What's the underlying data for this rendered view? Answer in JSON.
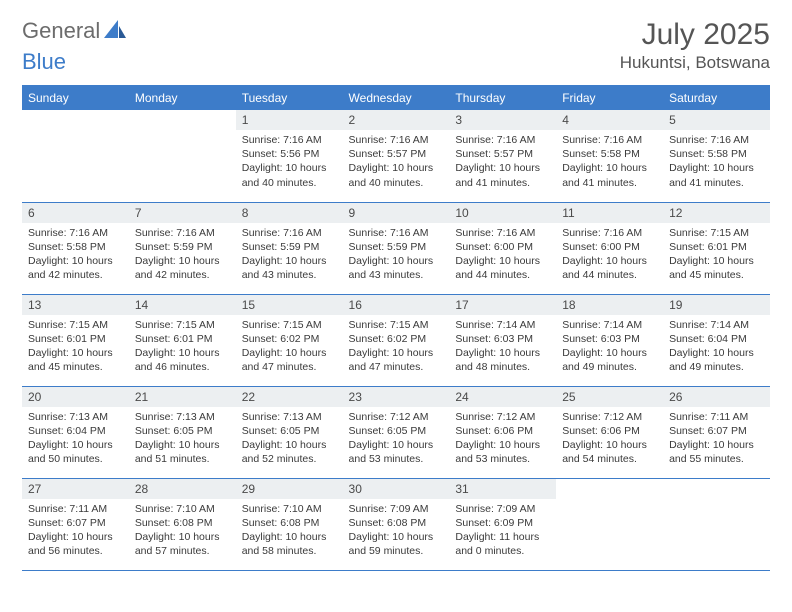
{
  "logo": {
    "part1": "General",
    "part2": "Blue"
  },
  "title": "July 2025",
  "location": "Hukuntsi, Botswana",
  "colors": {
    "accent": "#3d7cc9",
    "header_text": "#ffffff",
    "daynum_bg": "#eceff1",
    "text": "#333333",
    "title_text": "#555555"
  },
  "weekdays": [
    "Sunday",
    "Monday",
    "Tuesday",
    "Wednesday",
    "Thursday",
    "Friday",
    "Saturday"
  ],
  "weeks": [
    [
      {
        "empty": true
      },
      {
        "empty": true
      },
      {
        "day": "1",
        "sunrise": "Sunrise: 7:16 AM",
        "sunset": "Sunset: 5:56 PM",
        "daylight": "Daylight: 10 hours and 40 minutes."
      },
      {
        "day": "2",
        "sunrise": "Sunrise: 7:16 AM",
        "sunset": "Sunset: 5:57 PM",
        "daylight": "Daylight: 10 hours and 40 minutes."
      },
      {
        "day": "3",
        "sunrise": "Sunrise: 7:16 AM",
        "sunset": "Sunset: 5:57 PM",
        "daylight": "Daylight: 10 hours and 41 minutes."
      },
      {
        "day": "4",
        "sunrise": "Sunrise: 7:16 AM",
        "sunset": "Sunset: 5:58 PM",
        "daylight": "Daylight: 10 hours and 41 minutes."
      },
      {
        "day": "5",
        "sunrise": "Sunrise: 7:16 AM",
        "sunset": "Sunset: 5:58 PM",
        "daylight": "Daylight: 10 hours and 41 minutes."
      }
    ],
    [
      {
        "day": "6",
        "sunrise": "Sunrise: 7:16 AM",
        "sunset": "Sunset: 5:58 PM",
        "daylight": "Daylight: 10 hours and 42 minutes."
      },
      {
        "day": "7",
        "sunrise": "Sunrise: 7:16 AM",
        "sunset": "Sunset: 5:59 PM",
        "daylight": "Daylight: 10 hours and 42 minutes."
      },
      {
        "day": "8",
        "sunrise": "Sunrise: 7:16 AM",
        "sunset": "Sunset: 5:59 PM",
        "daylight": "Daylight: 10 hours and 43 minutes."
      },
      {
        "day": "9",
        "sunrise": "Sunrise: 7:16 AM",
        "sunset": "Sunset: 5:59 PM",
        "daylight": "Daylight: 10 hours and 43 minutes."
      },
      {
        "day": "10",
        "sunrise": "Sunrise: 7:16 AM",
        "sunset": "Sunset: 6:00 PM",
        "daylight": "Daylight: 10 hours and 44 minutes."
      },
      {
        "day": "11",
        "sunrise": "Sunrise: 7:16 AM",
        "sunset": "Sunset: 6:00 PM",
        "daylight": "Daylight: 10 hours and 44 minutes."
      },
      {
        "day": "12",
        "sunrise": "Sunrise: 7:15 AM",
        "sunset": "Sunset: 6:01 PM",
        "daylight": "Daylight: 10 hours and 45 minutes."
      }
    ],
    [
      {
        "day": "13",
        "sunrise": "Sunrise: 7:15 AM",
        "sunset": "Sunset: 6:01 PM",
        "daylight": "Daylight: 10 hours and 45 minutes."
      },
      {
        "day": "14",
        "sunrise": "Sunrise: 7:15 AM",
        "sunset": "Sunset: 6:01 PM",
        "daylight": "Daylight: 10 hours and 46 minutes."
      },
      {
        "day": "15",
        "sunrise": "Sunrise: 7:15 AM",
        "sunset": "Sunset: 6:02 PM",
        "daylight": "Daylight: 10 hours and 47 minutes."
      },
      {
        "day": "16",
        "sunrise": "Sunrise: 7:15 AM",
        "sunset": "Sunset: 6:02 PM",
        "daylight": "Daylight: 10 hours and 47 minutes."
      },
      {
        "day": "17",
        "sunrise": "Sunrise: 7:14 AM",
        "sunset": "Sunset: 6:03 PM",
        "daylight": "Daylight: 10 hours and 48 minutes."
      },
      {
        "day": "18",
        "sunrise": "Sunrise: 7:14 AM",
        "sunset": "Sunset: 6:03 PM",
        "daylight": "Daylight: 10 hours and 49 minutes."
      },
      {
        "day": "19",
        "sunrise": "Sunrise: 7:14 AM",
        "sunset": "Sunset: 6:04 PM",
        "daylight": "Daylight: 10 hours and 49 minutes."
      }
    ],
    [
      {
        "day": "20",
        "sunrise": "Sunrise: 7:13 AM",
        "sunset": "Sunset: 6:04 PM",
        "daylight": "Daylight: 10 hours and 50 minutes."
      },
      {
        "day": "21",
        "sunrise": "Sunrise: 7:13 AM",
        "sunset": "Sunset: 6:05 PM",
        "daylight": "Daylight: 10 hours and 51 minutes."
      },
      {
        "day": "22",
        "sunrise": "Sunrise: 7:13 AM",
        "sunset": "Sunset: 6:05 PM",
        "daylight": "Daylight: 10 hours and 52 minutes."
      },
      {
        "day": "23",
        "sunrise": "Sunrise: 7:12 AM",
        "sunset": "Sunset: 6:05 PM",
        "daylight": "Daylight: 10 hours and 53 minutes."
      },
      {
        "day": "24",
        "sunrise": "Sunrise: 7:12 AM",
        "sunset": "Sunset: 6:06 PM",
        "daylight": "Daylight: 10 hours and 53 minutes."
      },
      {
        "day": "25",
        "sunrise": "Sunrise: 7:12 AM",
        "sunset": "Sunset: 6:06 PM",
        "daylight": "Daylight: 10 hours and 54 minutes."
      },
      {
        "day": "26",
        "sunrise": "Sunrise: 7:11 AM",
        "sunset": "Sunset: 6:07 PM",
        "daylight": "Daylight: 10 hours and 55 minutes."
      }
    ],
    [
      {
        "day": "27",
        "sunrise": "Sunrise: 7:11 AM",
        "sunset": "Sunset: 6:07 PM",
        "daylight": "Daylight: 10 hours and 56 minutes."
      },
      {
        "day": "28",
        "sunrise": "Sunrise: 7:10 AM",
        "sunset": "Sunset: 6:08 PM",
        "daylight": "Daylight: 10 hours and 57 minutes."
      },
      {
        "day": "29",
        "sunrise": "Sunrise: 7:10 AM",
        "sunset": "Sunset: 6:08 PM",
        "daylight": "Daylight: 10 hours and 58 minutes."
      },
      {
        "day": "30",
        "sunrise": "Sunrise: 7:09 AM",
        "sunset": "Sunset: 6:08 PM",
        "daylight": "Daylight: 10 hours and 59 minutes."
      },
      {
        "day": "31",
        "sunrise": "Sunrise: 7:09 AM",
        "sunset": "Sunset: 6:09 PM",
        "daylight": "Daylight: 11 hours and 0 minutes."
      },
      {
        "empty": true
      },
      {
        "empty": true
      }
    ]
  ]
}
